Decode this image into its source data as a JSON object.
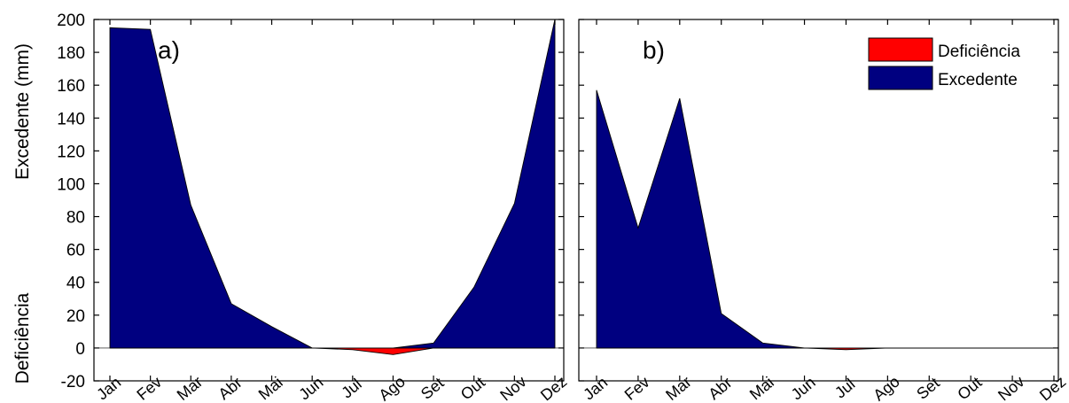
{
  "chart_data": [
    {
      "panel_label": "a)",
      "type": "area",
      "categories": [
        "Jan",
        "Fev",
        "Mar",
        "Abr",
        "Mai",
        "Jun",
        "Jul",
        "Ago",
        "Set",
        "Out",
        "Nov",
        "Dez"
      ],
      "series": [
        {
          "name": "Deficiência",
          "color": "#ff0000",
          "values": [
            0,
            0,
            0,
            0,
            0,
            0,
            -1,
            -4,
            0,
            0,
            0,
            0
          ]
        },
        {
          "name": "Excedente",
          "color": "#000080",
          "values": [
            195,
            194,
            87,
            27,
            13,
            0,
            0,
            0,
            3,
            37,
            88,
            200
          ]
        }
      ],
      "ylim": [
        -20,
        200
      ],
      "yticks": [
        -20,
        0,
        20,
        40,
        60,
        80,
        100,
        120,
        140,
        160,
        180,
        200
      ],
      "ylabel_top": "Excedente (mm)",
      "ylabel_bottom": "Deficiência"
    },
    {
      "panel_label": "b)",
      "type": "area",
      "categories": [
        "Jan",
        "Fev",
        "Mar",
        "Abr",
        "Mai",
        "Jun",
        "Jul",
        "Ago",
        "Set",
        "Out",
        "Nov",
        "Dez"
      ],
      "series": [
        {
          "name": "Deficiência",
          "color": "#ff0000",
          "values": [
            0,
            0,
            0,
            0,
            0,
            0,
            -1,
            0,
            0,
            0,
            0,
            0
          ]
        },
        {
          "name": "Excedente",
          "color": "#000080",
          "values": [
            157,
            73,
            152,
            21,
            3,
            0,
            0,
            0,
            0,
            0,
            0,
            0
          ]
        }
      ],
      "ylim": [
        -20,
        200
      ],
      "legend": {
        "position": "top-right",
        "entries": [
          "Deficiência",
          "Excedente"
        ]
      }
    }
  ]
}
